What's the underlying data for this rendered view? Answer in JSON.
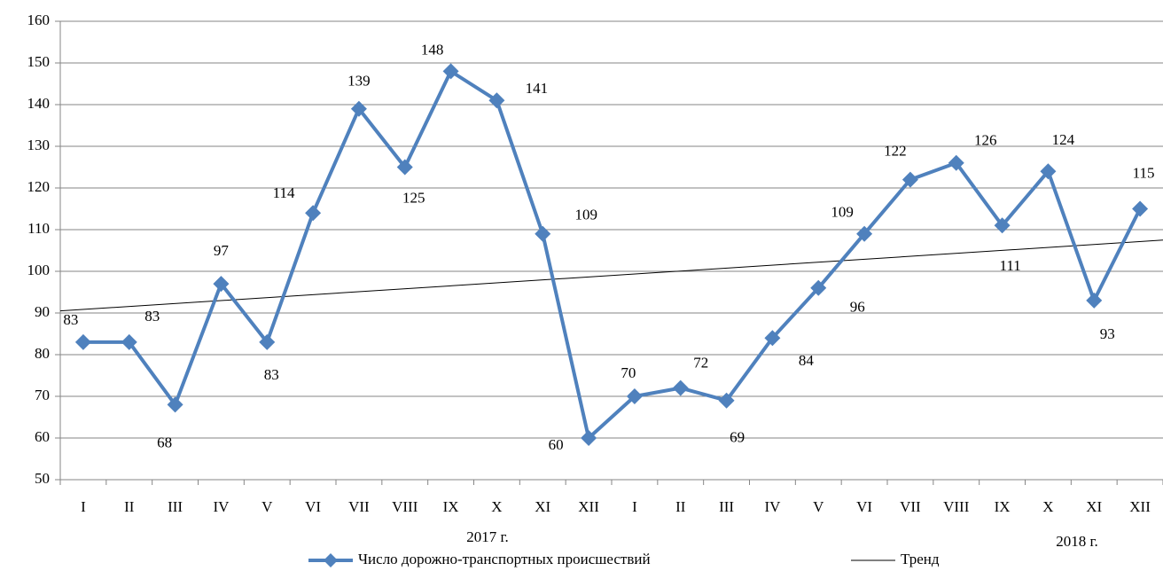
{
  "chart_data": {
    "type": "line",
    "categories": [
      "I",
      "II",
      "III",
      "IV",
      "V",
      "VI",
      "VII",
      "VIII",
      "IX",
      "X",
      "XI",
      "XII",
      "I",
      "II",
      "III",
      "IV",
      "V",
      "VI",
      "VII",
      "VIII",
      "IX",
      "X",
      "XI",
      "XII"
    ],
    "groups": [
      "2017 г.",
      "2018 г."
    ],
    "series": [
      {
        "name": "Число дорожно-транспортных происшествий",
        "color": "#4f81bd",
        "values": [
          83,
          83,
          68,
          97,
          83,
          114,
          139,
          125,
          148,
          141,
          109,
          60,
          70,
          72,
          69,
          84,
          96,
          109,
          122,
          126,
          111,
          124,
          93,
          115
        ]
      }
    ],
    "trend": {
      "name": "Тренд",
      "color": "#000000",
      "values": [
        90.5,
        107.5
      ]
    },
    "ylim": [
      50,
      160
    ],
    "yticks": [
      50,
      60,
      70,
      80,
      90,
      100,
      110,
      120,
      130,
      140,
      150,
      160
    ],
    "grid": true
  }
}
